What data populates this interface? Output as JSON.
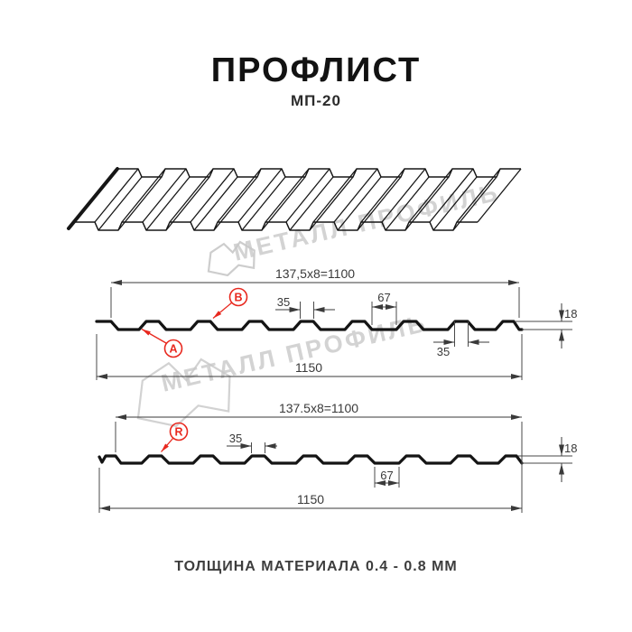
{
  "header": {
    "title": "ПРОФЛИСТ",
    "subtitle": "МП-20"
  },
  "watermark": {
    "text": "МЕТАЛЛ ПРОФИЛЬ"
  },
  "footer": {
    "note": "ТОЛЩИНА МАТЕРИАЛА 0.4 - 0.8 ММ"
  },
  "profile_spec": {
    "pitch_mm": "137,5",
    "pitch_count": "8",
    "working_width_mm": "1100",
    "overall_width_mm": "1150",
    "crest_width_mm": "35",
    "valley_width_mm": "67",
    "height_mm": "18"
  },
  "section_a": {
    "width_formula": "137,5x8=1100",
    "overall_width": "1150",
    "crest_width": "35",
    "valley_width": "67",
    "height": "18",
    "crest_width_bottom": "35",
    "label_a": "A",
    "label_b": "B"
  },
  "section_r": {
    "width_formula": "137.5x8=1100",
    "overall_width": "1150",
    "crest_width": "35",
    "valley_width": "67",
    "height": "18",
    "label_r": "R"
  },
  "colors": {
    "accent_red": "#e8281e",
    "dim_line": "#444444",
    "profile_line": "#141414",
    "watermark_gray": "#c9c9c9"
  }
}
